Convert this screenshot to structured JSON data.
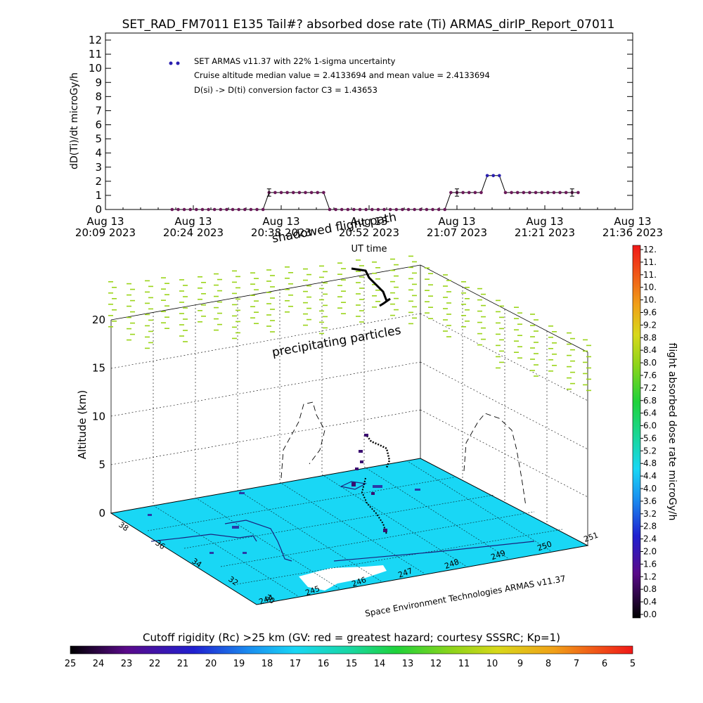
{
  "title": "SET_RAD_FM7011  E135 Tail#? absorbed dose rate (Ti) ARMAS_dirIP_Report_07011",
  "top_chart": {
    "ylabel": "dD(Ti)/dt microGy/h",
    "xlabel": "UT time",
    "legend": {
      "series": "SET ARMAS v11.37 with 22% 1-sigma uncertainty",
      "line2": "Cruise altitude median value = 2.4133694 and mean value = 2.4133694",
      "line3": "D(si) -> D(ti) conversion factor C3 = 1.43653"
    },
    "series_color": "#2a1fb0",
    "marker_color": "#6b1a5a"
  },
  "chart_data": [
    {
      "type": "scatter",
      "title": "SET_RAD_FM7011  E135 Tail#? absorbed dose rate (Ti) ARMAS_dirIP_Report_07011",
      "xlabel": "UT time",
      "ylabel": "dD(Ti)/dt microGy/h",
      "ylim": [
        0,
        12
      ],
      "yticks": [
        "0",
        "1",
        "2",
        "3",
        "4",
        "5",
        "6",
        "7",
        "8",
        "9",
        "10",
        "11",
        "12"
      ],
      "xticks": [
        {
          "l1": "Aug 13",
          "l2": "20:09 2023"
        },
        {
          "l1": "Aug 13",
          "l2": "20:24 2023"
        },
        {
          "l1": "Aug 13",
          "l2": "20:38 2023"
        },
        {
          "l1": "Aug 13",
          "l2": "20:52 2023"
        },
        {
          "l1": "Aug 13",
          "l2": "21:07 2023"
        },
        {
          "l1": "Aug 13",
          "l2": "21:21 2023"
        },
        {
          "l1": "Aug 13",
          "l2": "21:36 2023"
        }
      ],
      "xlim_minutes_after_2009": [
        0,
        87
      ],
      "series": [
        {
          "name": "SET ARMAS v11.37 with 22% 1-sigma uncertainty",
          "x_minutes_after_2009": [
            11,
            12,
            13,
            14,
            15,
            16,
            17,
            18,
            19,
            20,
            21,
            22,
            23,
            24,
            25,
            26,
            27,
            28,
            29,
            30,
            31,
            32,
            33,
            34,
            35,
            36,
            37,
            38,
            39,
            40,
            41,
            42,
            43,
            44,
            45,
            46,
            47,
            48,
            49,
            50,
            51,
            52,
            53,
            54,
            55,
            56,
            57,
            58,
            59,
            60,
            61,
            62,
            63,
            64,
            65,
            66,
            67,
            68,
            69,
            70,
            71,
            72,
            73,
            74,
            75,
            76,
            77,
            78
          ],
          "values": [
            0,
            0,
            0,
            0,
            0,
            0,
            0,
            0,
            0,
            0,
            0,
            0,
            0,
            0,
            0,
            0,
            1.2,
            1.2,
            1.2,
            1.2,
            1.2,
            1.2,
            1.2,
            1.2,
            1.2,
            1.2,
            0,
            0,
            0,
            0,
            0,
            0,
            0,
            0,
            0,
            0,
            0,
            0,
            0,
            0,
            0,
            0,
            0,
            0,
            0,
            0,
            1.2,
            1.2,
            1.2,
            1.2,
            1.2,
            1.2,
            2.4,
            2.4,
            2.4,
            1.2,
            1.2,
            1.2,
            1.2,
            1.2,
            1.2,
            1.2,
            1.2,
            1.2,
            1.2,
            1.2,
            1.2,
            1.2
          ]
        }
      ]
    },
    {
      "type": "scatter",
      "title": "",
      "ylabel": "Altitude (km)",
      "zticks": [
        "0",
        "5",
        "10",
        "15",
        "20"
      ],
      "lat_ticks": [
        "30",
        "32",
        "34",
        "36",
        "38"
      ],
      "lon_ticks": [
        "244",
        "245",
        "246",
        "247",
        "248",
        "249",
        "250",
        "251"
      ],
      "annotations": [
        "shadowed flight path",
        "precipitating particles",
        "Space Environment Technologies ARMAS v11.37"
      ],
      "colorbar": {
        "label": "flight absorbed dose rate microGy/h",
        "ticks": [
          "12.",
          "11.",
          "11.",
          "10.",
          "10.",
          "9.6",
          "9.2",
          "8.8",
          "8.4",
          "8.0",
          "7.6",
          "7.2",
          "6.8",
          "6.4",
          "6.0",
          "5.6",
          "5.2",
          "4.8",
          "4.4",
          "4.0",
          "3.6",
          "3.2",
          "2.8",
          "2.4",
          "2.0",
          "1.6",
          "1.2",
          "0.8",
          "0.4",
          "0.0"
        ]
      }
    },
    {
      "type": "heatmap",
      "title": "Cutoff rigidity (Rc) >25 km (GV: red = greatest hazard; courtesy SSSRC; Kp=1)",
      "ticks": [
        "25",
        "24",
        "23",
        "22",
        "21",
        "20",
        "19",
        "18",
        "17",
        "16",
        "15",
        "14",
        "13",
        "12",
        "11",
        "10",
        "9",
        "8",
        "7",
        "6",
        "5"
      ]
    }
  ],
  "colors": {
    "ground": "#19d7f5",
    "precip": "#9bd41a",
    "track": "#000000"
  }
}
